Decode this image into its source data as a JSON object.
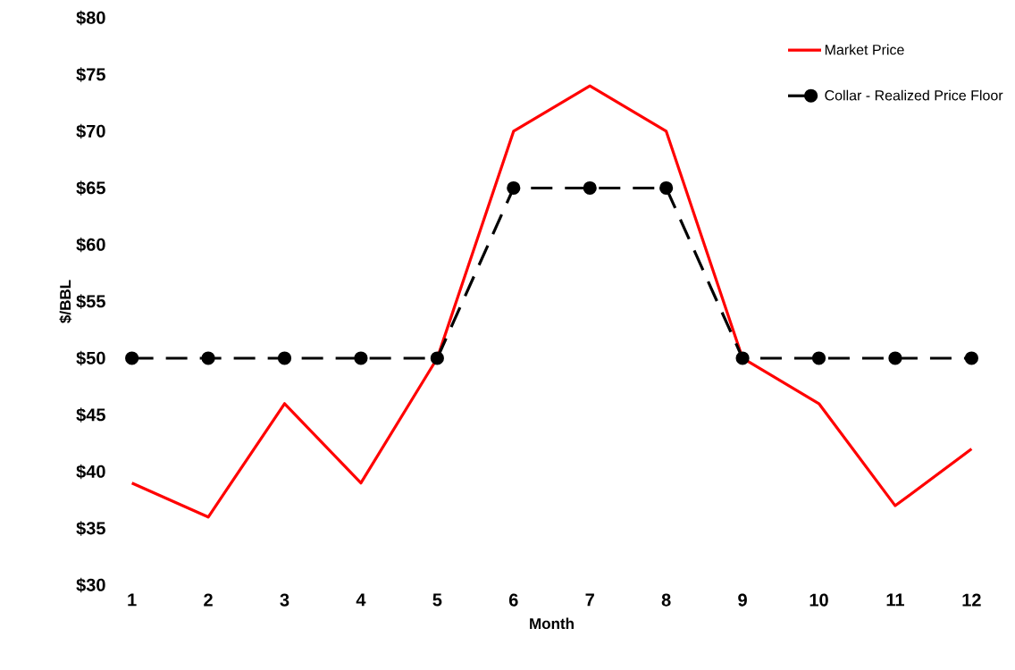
{
  "chart_data": {
    "type": "line",
    "xlabel": "Month",
    "ylabel": "$/BBL",
    "categories": [
      "1",
      "2",
      "3",
      "4",
      "5",
      "6",
      "7",
      "8",
      "9",
      "10",
      "11",
      "12"
    ],
    "series": [
      {
        "name": "Market Price",
        "color": "#ff0000",
        "values": [
          39,
          36,
          46,
          39,
          50,
          70,
          74,
          70,
          50,
          46,
          37,
          42
        ],
        "marker": "none",
        "line_style": "solid"
      },
      {
        "name": "Collar - Realized Price Floor",
        "color": "#000000",
        "values": [
          50,
          50,
          50,
          50,
          50,
          65,
          65,
          65,
          50,
          50,
          50,
          50
        ],
        "marker": "circle",
        "line_style": "dashed"
      }
    ],
    "ylim": [
      30,
      80
    ],
    "yticks": [
      {
        "value": 30,
        "label": "$30"
      },
      {
        "value": 35,
        "label": "$35"
      },
      {
        "value": 40,
        "label": "$40"
      },
      {
        "value": 45,
        "label": "$45"
      },
      {
        "value": 50,
        "label": "$50"
      },
      {
        "value": 55,
        "label": "$55"
      },
      {
        "value": 60,
        "label": "$60"
      },
      {
        "value": 65,
        "label": "$65"
      },
      {
        "value": 70,
        "label": "$70"
      },
      {
        "value": 75,
        "label": "$75"
      },
      {
        "value": 80,
        "label": "$80"
      }
    ],
    "grid": false,
    "legend": "top right"
  }
}
